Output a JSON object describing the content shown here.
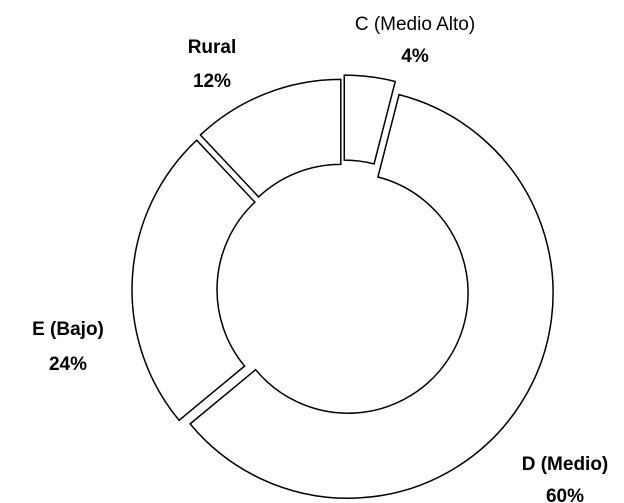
{
  "chart_data": {
    "type": "donut",
    "categories": [
      "C (Medio Alto)",
      "D (Medio)",
      "E (Bajo)",
      "Rural"
    ],
    "values": [
      4,
      60,
      24,
      12
    ],
    "value_labels": [
      "4%",
      "60%",
      "24%",
      "12%"
    ],
    "color": "#ffffff"
  }
}
